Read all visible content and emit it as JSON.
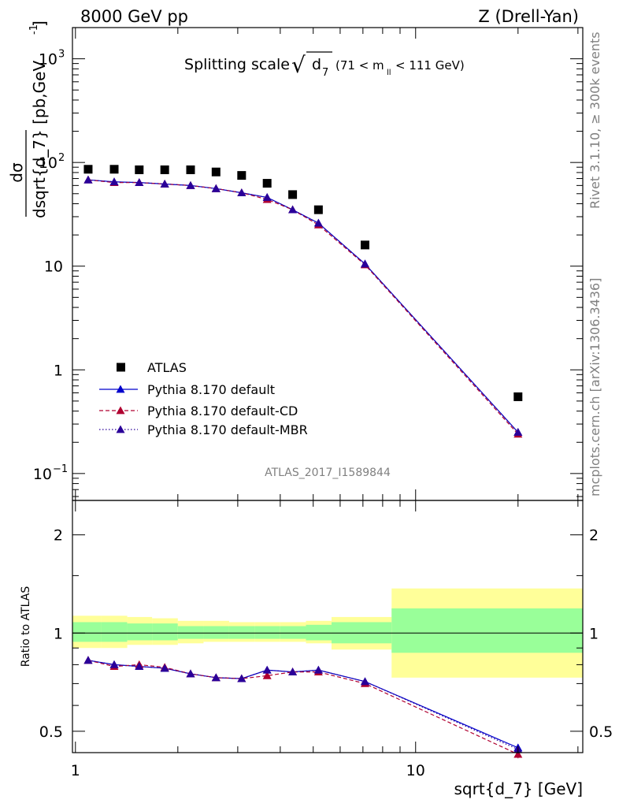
{
  "header": {
    "left": "8000 GeV pp",
    "right": "Z (Drell-Yan)"
  },
  "plot_title": {
    "text": "Splitting scale",
    "sqrt_symbol": "√",
    "var_main": "d",
    "var_sub": "7",
    "range_open": "(71 < m",
    "range_sub": "ll",
    "range_close": "< 111 GeV)"
  },
  "side_text": {
    "rivet": "Rivet 3.1.10, ≥ 300k events",
    "mcplots": "mcplots.cern.ch [arXiv:1306.3436]"
  },
  "watermark": "ATLAS_2017_I1589844",
  "axes": {
    "ylabel_main": "dσ / dsqrt{d_7} [pb,GeV⁻¹]",
    "ylabel_num": "dσ",
    "ylabel_den": "dsqrt{d_7} [pb,GeV",
    "ylabel_den_sup": "-1",
    "ylabel_den_end": "]",
    "ylabel_ratio": "Ratio to ATLAS",
    "xlabel": "sqrt{d_7} [GeV]"
  },
  "legend": {
    "items": [
      {
        "label": "ATLAS",
        "color": "#000000",
        "marker": "square"
      },
      {
        "label": "Pythia 8.170 default",
        "color": "#0000cc",
        "marker": "triangle"
      },
      {
        "label": "Pythia 8.170 default-CD",
        "color": "#b00030",
        "marker": "triangle"
      },
      {
        "label": "Pythia 8.170 default-MBR",
        "color": "#2a0099",
        "marker": "triangle"
      }
    ]
  },
  "chart_data": {
    "type": "line",
    "x_scale": "log",
    "xlim": [
      0.98,
      31
    ],
    "x_ticks": [
      {
        "value": 1,
        "label": "1"
      },
      {
        "value": 10,
        "label": "10"
      }
    ],
    "main_panel": {
      "y_scale": "log",
      "ylim": [
        0.055,
        2000
      ],
      "y_ticks": [
        {
          "value": 0.1,
          "label": "10",
          "sup": "−1"
        },
        {
          "value": 1,
          "label": "1",
          "sup": ""
        },
        {
          "value": 10,
          "label": "10",
          "sup": ""
        },
        {
          "value": 100,
          "label": "10",
          "sup": "2"
        },
        {
          "value": 1000,
          "label": "10",
          "sup": "3"
        }
      ],
      "data": {
        "name": "ATLAS",
        "x": [
          1.09,
          1.3,
          1.54,
          1.83,
          2.18,
          2.59,
          3.08,
          3.66,
          4.35,
          5.18,
          7.1,
          20.0
        ],
        "y": [
          86,
          86,
          85,
          85,
          85,
          81,
          75,
          63,
          49,
          35,
          16,
          0.55
        ]
      },
      "series": [
        {
          "name": "Pythia 8.170 default",
          "color": "#0000cc",
          "style": "solid",
          "x": [
            1.09,
            1.3,
            1.54,
            1.83,
            2.18,
            2.59,
            3.08,
            3.66,
            4.35,
            5.18,
            7.1,
            20.0
          ],
          "y": [
            68,
            65,
            64,
            62,
            60,
            56,
            51,
            46,
            35,
            26,
            10.5,
            0.25
          ]
        },
        {
          "name": "Pythia 8.170 default-CD",
          "color": "#b00030",
          "style": "dashed",
          "x": [
            1.09,
            1.3,
            1.54,
            1.83,
            2.18,
            2.59,
            3.08,
            3.66,
            4.35,
            5.18,
            7.1,
            20.0
          ],
          "y": [
            68,
            64,
            64,
            62,
            60,
            56,
            51,
            44,
            35,
            25,
            10.3,
            0.24
          ]
        },
        {
          "name": "Pythia 8.170 default-MBR",
          "color": "#2a0099",
          "style": "dotted",
          "x": [
            1.09,
            1.3,
            1.54,
            1.83,
            2.18,
            2.59,
            3.08,
            3.66,
            4.35,
            5.18,
            7.1,
            20.0
          ],
          "y": [
            68,
            65,
            64,
            62,
            60,
            56,
            51,
            46,
            35,
            26,
            10.5,
            0.25
          ]
        }
      ]
    },
    "ratio_panel": {
      "y_scale": "log",
      "ylim": [
        0.43,
        2.55
      ],
      "y_ticks": [
        {
          "value": 0.5,
          "label": "0.5"
        },
        {
          "value": 1,
          "label": "1"
        },
        {
          "value": 2,
          "label": "2"
        }
      ],
      "bands": [
        {
          "x0": 0.98,
          "x1": 1.19,
          "inner": [
            0.94,
            1.08
          ],
          "outer": [
            0.9,
            1.13
          ]
        },
        {
          "x0": 1.19,
          "x1": 1.42,
          "inner": [
            0.94,
            1.08
          ],
          "outer": [
            0.9,
            1.13
          ]
        },
        {
          "x0": 1.42,
          "x1": 1.68,
          "inner": [
            0.95,
            1.07
          ],
          "outer": [
            0.92,
            1.12
          ]
        },
        {
          "x0": 1.68,
          "x1": 2.0,
          "inner": [
            0.95,
            1.07
          ],
          "outer": [
            0.92,
            1.11
          ]
        },
        {
          "x0": 2.0,
          "x1": 2.38,
          "inner": [
            0.96,
            1.05
          ],
          "outer": [
            0.93,
            1.09
          ]
        },
        {
          "x0": 2.38,
          "x1": 2.83,
          "inner": [
            0.96,
            1.05
          ],
          "outer": [
            0.94,
            1.09
          ]
        },
        {
          "x0": 2.83,
          "x1": 3.36,
          "inner": [
            0.96,
            1.05
          ],
          "outer": [
            0.94,
            1.08
          ]
        },
        {
          "x0": 3.36,
          "x1": 4.0,
          "inner": [
            0.96,
            1.05
          ],
          "outer": [
            0.94,
            1.08
          ]
        },
        {
          "x0": 4.0,
          "x1": 4.76,
          "inner": [
            0.96,
            1.05
          ],
          "outer": [
            0.94,
            1.08
          ]
        },
        {
          "x0": 4.76,
          "x1": 5.66,
          "inner": [
            0.95,
            1.06
          ],
          "outer": [
            0.93,
            1.09
          ]
        },
        {
          "x0": 5.66,
          "x1": 8.5,
          "inner": [
            0.93,
            1.08
          ],
          "outer": [
            0.89,
            1.12
          ]
        },
        {
          "x0": 8.5,
          "x1": 31,
          "inner": [
            0.87,
            1.19
          ],
          "outer": [
            0.73,
            1.37
          ]
        }
      ],
      "series": [
        {
          "name": "Pythia 8.170 default",
          "color": "#0000cc",
          "style": "solid",
          "x": [
            1.09,
            1.3,
            1.54,
            1.83,
            2.18,
            2.59,
            3.08,
            3.66,
            4.35,
            5.18,
            7.1,
            20.0
          ],
          "y": [
            0.825,
            0.8,
            0.79,
            0.78,
            0.75,
            0.73,
            0.725,
            0.77,
            0.76,
            0.77,
            0.71,
            0.445
          ],
          "err": [
            0.005,
            0.005,
            0.005,
            0.005,
            0.005,
            0.005,
            0.005,
            0.005,
            0.006,
            0.007,
            0.008,
            0.012
          ]
        },
        {
          "name": "Pythia 8.170 default-CD",
          "color": "#b00030",
          "style": "dashed",
          "x": [
            1.09,
            1.3,
            1.54,
            1.83,
            2.18,
            2.59,
            3.08,
            3.66,
            4.35,
            5.18,
            7.1,
            20.0
          ],
          "y": [
            0.825,
            0.79,
            0.8,
            0.785,
            0.75,
            0.73,
            0.725,
            0.74,
            0.76,
            0.76,
            0.7,
            0.425
          ],
          "err": [
            0.005,
            0.005,
            0.005,
            0.005,
            0.005,
            0.005,
            0.005,
            0.005,
            0.006,
            0.007,
            0.008,
            0.012
          ]
        },
        {
          "name": "Pythia 8.170 default-MBR",
          "color": "#2a0099",
          "style": "dotted",
          "x": [
            1.09,
            1.3,
            1.54,
            1.83,
            2.18,
            2.59,
            3.08,
            3.66,
            4.35,
            5.18,
            7.1,
            20.0
          ],
          "y": [
            0.825,
            0.8,
            0.79,
            0.78,
            0.75,
            0.73,
            0.725,
            0.77,
            0.76,
            0.77,
            0.71,
            0.44
          ],
          "err": [
            0.005,
            0.005,
            0.005,
            0.005,
            0.005,
            0.005,
            0.005,
            0.005,
            0.006,
            0.007,
            0.008,
            0.012
          ]
        }
      ]
    },
    "colors": {
      "inner_band": "#99ff99",
      "outer_band": "#ffff99"
    }
  }
}
